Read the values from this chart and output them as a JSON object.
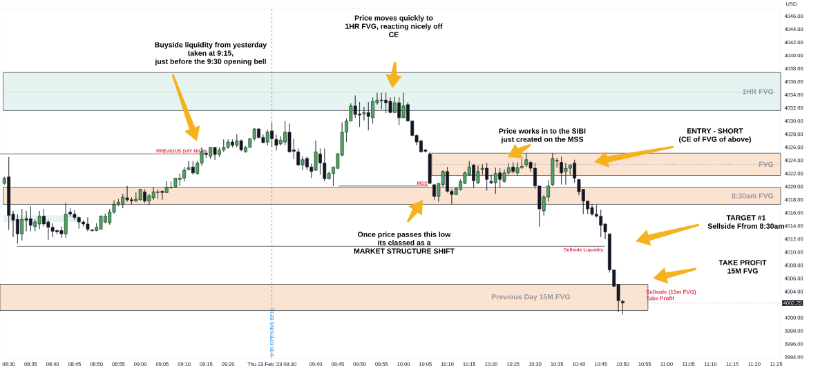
{
  "chart_data": {
    "type": "candlestick",
    "ylabel": "USD",
    "x": [
      "2023-02-23T08:29",
      "2023-02-23T08:30",
      "2023-02-23T08:31",
      "2023-02-23T08:32",
      "2023-02-23T08:33",
      "2023-02-23T08:34",
      "2023-02-23T08:35",
      "2023-02-23T08:36",
      "2023-02-23T08:37",
      "2023-02-23T08:38",
      "2023-02-23T08:39",
      "2023-02-23T08:40",
      "2023-02-23T08:41",
      "2023-02-23T08:42",
      "2023-02-23T08:43",
      "2023-02-23T08:44",
      "2023-02-23T08:45",
      "2023-02-23T08:46",
      "2023-02-23T08:47",
      "2023-02-23T08:48",
      "2023-02-23T08:49",
      "2023-02-23T08:50",
      "2023-02-23T08:51",
      "2023-02-23T08:52",
      "2023-02-23T08:53",
      "2023-02-23T08:54",
      "2023-02-23T08:55",
      "2023-02-23T08:56",
      "2023-02-23T08:57",
      "2023-02-23T08:58",
      "2023-02-23T08:59",
      "2023-02-23T09:00",
      "2023-02-23T09:01",
      "2023-02-23T09:02",
      "2023-02-23T09:03",
      "2023-02-23T09:04",
      "2023-02-23T09:05",
      "2023-02-23T09:06",
      "2023-02-23T09:07",
      "2023-02-23T09:08",
      "2023-02-23T09:09",
      "2023-02-23T09:10",
      "2023-02-23T09:11",
      "2023-02-23T09:12",
      "2023-02-23T09:13",
      "2023-02-23T09:14",
      "2023-02-23T09:15",
      "2023-02-23T09:16",
      "2023-02-23T09:17",
      "2023-02-23T09:18",
      "2023-02-23T09:19",
      "2023-02-23T09:20",
      "2023-02-23T09:21",
      "2023-02-23T09:22",
      "2023-02-23T09:23",
      "2023-02-23T09:24",
      "2023-02-23T09:25",
      "2023-02-23T09:26",
      "2023-02-23T09:27",
      "2023-02-23T09:28",
      "2023-02-23T09:29",
      "2023-02-23T09:30",
      "2023-02-23T09:31",
      "2023-02-23T09:32",
      "2023-02-23T09:33",
      "2023-02-23T09:34",
      "2023-02-23T09:35",
      "2023-02-23T09:36",
      "2023-02-23T09:37",
      "2023-02-23T09:38",
      "2023-02-23T09:39",
      "2023-02-23T09:40",
      "2023-02-23T09:41",
      "2023-02-23T09:42",
      "2023-02-23T09:43",
      "2023-02-23T09:44",
      "2023-02-23T09:45",
      "2023-02-23T09:46",
      "2023-02-23T09:47",
      "2023-02-23T09:48",
      "2023-02-23T09:49",
      "2023-02-23T09:50",
      "2023-02-23T09:51",
      "2023-02-23T09:52",
      "2023-02-23T09:53",
      "2023-02-23T09:54",
      "2023-02-23T09:55",
      "2023-02-23T09:56",
      "2023-02-23T09:57",
      "2023-02-23T09:58",
      "2023-02-23T09:59",
      "2023-02-23T10:00",
      "2023-02-23T10:01",
      "2023-02-23T10:02",
      "2023-02-23T10:03",
      "2023-02-23T10:04",
      "2023-02-23T10:05",
      "2023-02-23T10:06",
      "2023-02-23T10:07",
      "2023-02-23T10:08",
      "2023-02-23T10:09",
      "2023-02-23T10:10",
      "2023-02-23T10:11",
      "2023-02-23T10:12",
      "2023-02-23T10:13",
      "2023-02-23T10:14",
      "2023-02-23T10:15",
      "2023-02-23T10:16",
      "2023-02-23T10:17",
      "2023-02-23T10:18",
      "2023-02-23T10:19",
      "2023-02-23T10:20",
      "2023-02-23T10:21",
      "2023-02-23T10:22",
      "2023-02-23T10:23",
      "2023-02-23T10:24",
      "2023-02-23T10:25",
      "2023-02-23T10:26",
      "2023-02-23T10:27",
      "2023-02-23T10:28",
      "2023-02-23T10:29",
      "2023-02-23T10:30",
      "2023-02-23T10:31",
      "2023-02-23T10:32",
      "2023-02-23T10:33",
      "2023-02-23T10:34",
      "2023-02-23T10:35",
      "2023-02-23T10:36",
      "2023-02-23T10:37",
      "2023-02-23T10:38",
      "2023-02-23T10:39",
      "2023-02-23T10:40",
      "2023-02-23T10:41",
      "2023-02-23T10:42",
      "2023-02-23T10:43",
      "2023-02-23T10:44",
      "2023-02-23T10:45",
      "2023-02-23T10:46",
      "2023-02-23T10:47",
      "2023-02-23T10:48",
      "2023-02-23T10:49",
      "2023-02-23T10:50"
    ],
    "ohlc": [
      [
        4020.5,
        4021.5,
        4020.3,
        4021.3
      ],
      [
        4021.5,
        4024.5,
        4013.4,
        4015.6
      ],
      [
        4015.8,
        4016.3,
        4012.3,
        4014.9
      ],
      [
        4015.0,
        4015.8,
        4011.3,
        4012.8
      ],
      [
        4012.8,
        4016.6,
        4011.8,
        4015.0
      ],
      [
        4015.1,
        4016.3,
        4013.2,
        4014.9
      ],
      [
        4015.1,
        4017.0,
        4013.2,
        4014.1
      ],
      [
        4013.9,
        4015.0,
        4013.2,
        4014.6
      ],
      [
        4014.3,
        4016.3,
        4013.5,
        4015.5
      ],
      [
        4015.5,
        4016.6,
        4013.9,
        4014.3
      ],
      [
        4014.6,
        4014.9,
        4011.9,
        4013.8
      ],
      [
        4013.8,
        4014.4,
        4012.3,
        4013.2
      ],
      [
        4013.3,
        4013.5,
        4012.7,
        4013.1
      ],
      [
        4013.3,
        4013.9,
        4012.2,
        4012.8
      ],
      [
        4012.8,
        4017.5,
        4012.2,
        4015.8
      ],
      [
        4016.1,
        4016.7,
        4015.4,
        4015.8
      ],
      [
        4015.8,
        4016.4,
        4014.9,
        4015.3
      ],
      [
        4015.3,
        4015.4,
        4013.6,
        4014.6
      ],
      [
        4014.6,
        4014.9,
        4013.9,
        4014.3
      ],
      [
        4014.3,
        4015.3,
        4013.2,
        4013.5
      ],
      [
        4013.4,
        4013.5,
        4013.1,
        4013.3
      ],
      [
        4013.3,
        4014.4,
        4013.2,
        4013.8
      ],
      [
        4013.5,
        4015.6,
        4013.5,
        4015.5
      ],
      [
        4014.6,
        4015.9,
        4014.4,
        4015.5
      ],
      [
        4014.5,
        4016.6,
        4014.2,
        4016.1
      ],
      [
        4016.1,
        4017.9,
        4015.9,
        4017.3
      ],
      [
        4017.3,
        4018.1,
        4017.0,
        4017.6
      ],
      [
        4017.3,
        4018.9,
        4016.7,
        4018.4
      ],
      [
        4018.3,
        4020.1,
        4017.7,
        4018.0
      ],
      [
        4018.0,
        4018.4,
        4017.3,
        4017.8
      ],
      [
        4017.8,
        4019.1,
        4017.7,
        4018.1
      ],
      [
        4018.0,
        4019.6,
        4017.9,
        4019.6
      ],
      [
        4019.2,
        4019.6,
        4017.5,
        4017.8
      ],
      [
        4017.8,
        4018.9,
        4017.2,
        4018.6
      ],
      [
        4018.3,
        4019.9,
        4018.0,
        4019.2
      ],
      [
        4019.1,
        4019.6,
        4018.1,
        4019.2
      ],
      [
        4019.3,
        4019.4,
        4018.0,
        4019.1
      ],
      [
        4019.1,
        4020.8,
        4019.0,
        4019.9
      ],
      [
        4019.8,
        4020.8,
        4019.8,
        4019.9
      ],
      [
        4019.9,
        4021.3,
        4019.8,
        4021.3
      ],
      [
        4021.1,
        4022.0,
        4020.1,
        4021.3
      ],
      [
        4021.3,
        4023.0,
        4020.8,
        4022.5
      ],
      [
        4022.6,
        4023.9,
        4022.5,
        4022.9
      ],
      [
        4023.0,
        4023.9,
        4021.8,
        4022.1
      ],
      [
        4022.0,
        4023.9,
        4021.8,
        4023.6
      ],
      [
        4023.6,
        4026.0,
        4023.2,
        4025.3
      ],
      [
        4025.1,
        4025.5,
        4024.4,
        4024.9
      ],
      [
        4024.6,
        4026.0,
        4024.2,
        4026.0
      ],
      [
        4026.0,
        4026.0,
        4024.1,
        4024.9
      ],
      [
        4024.9,
        4026.0,
        4024.5,
        4025.6
      ],
      [
        4025.6,
        4027.2,
        4025.3,
        4026.0
      ],
      [
        4026.0,
        4027.2,
        4025.8,
        4026.8
      ],
      [
        4026.8,
        4027.2,
        4026.0,
        4026.3
      ],
      [
        4026.3,
        4028.0,
        4026.0,
        4027.0
      ],
      [
        4027.0,
        4027.2,
        4025.4,
        4025.6
      ],
      [
        4025.3,
        4026.2,
        4025.2,
        4026.0
      ],
      [
        4026.0,
        4027.4,
        4025.9,
        4027.3
      ],
      [
        4027.3,
        4028.9,
        4027.0,
        4028.8
      ],
      [
        4028.8,
        4028.9,
        4027.4,
        4027.5
      ],
      [
        4027.5,
        4027.9,
        4026.7,
        4026.7
      ],
      [
        4026.8,
        4028.7,
        4026.3,
        4028.3
      ],
      [
        4028.5,
        4029.8,
        4026.0,
        4027.3
      ],
      [
        4027.2,
        4027.9,
        4025.5,
        4026.3
      ],
      [
        4026.5,
        4027.7,
        4026.3,
        4027.1
      ],
      [
        4026.8,
        4030.0,
        4026.3,
        4028.3
      ],
      [
        4028.3,
        4029.6,
        4025.2,
        4025.3
      ],
      [
        4025.6,
        4027.3,
        4024.2,
        4025.4
      ],
      [
        4025.3,
        4025.8,
        4023.2,
        4023.3
      ],
      [
        4023.3,
        4024.6,
        4022.5,
        4024.1
      ],
      [
        4024.3,
        4024.6,
        4022.5,
        4023.0
      ],
      [
        4023.0,
        4023.5,
        4021.3,
        4022.3
      ],
      [
        4022.5,
        4027.0,
        4022.4,
        4025.3
      ],
      [
        4025.0,
        4025.8,
        4021.8,
        4023.6
      ],
      [
        4023.6,
        4025.8,
        4020.8,
        4021.2
      ],
      [
        4021.2,
        4022.3,
        4021.1,
        4022.0
      ],
      [
        4022.0,
        4023.0,
        4020.1,
        4023.0
      ],
      [
        4022.8,
        4025.1,
        4022.7,
        4025.0
      ],
      [
        4024.8,
        4029.8,
        4024.6,
        4028.3
      ],
      [
        4028.3,
        4030.4,
        4026.8,
        4030.0
      ],
      [
        4030.0,
        4032.7,
        4030.0,
        4032.3
      ],
      [
        4032.3,
        4033.9,
        4030.5,
        4031.0
      ],
      [
        4031.1,
        4032.9,
        4029.1,
        4030.9
      ],
      [
        4031.1,
        4032.2,
        4030.1,
        4031.3
      ],
      [
        4031.3,
        4032.9,
        4028.6,
        4030.7
      ],
      [
        4030.5,
        4033.6,
        4029.6,
        4033.0
      ],
      [
        4032.8,
        4034.3,
        4032.5,
        4033.2
      ],
      [
        4033.2,
        4034.3,
        4031.8,
        4033.1
      ],
      [
        4033.2,
        4034.3,
        4031.2,
        4032.8
      ],
      [
        4033.0,
        4033.6,
        4031.2,
        4031.3
      ],
      [
        4031.3,
        4033.7,
        4031.2,
        4032.8
      ],
      [
        4032.8,
        4033.6,
        4029.4,
        4030.5
      ],
      [
        4030.5,
        4034.3,
        4030.5,
        4032.3
      ],
      [
        4032.5,
        4032.9,
        4029.9,
        4030.0
      ],
      [
        4030.0,
        4030.1,
        4027.7,
        4027.8
      ],
      [
        4027.8,
        4028.0,
        4026.3,
        4026.8
      ],
      [
        4027.0,
        4027.1,
        4025.2,
        4025.3
      ],
      [
        4025.6,
        4025.7,
        4025.2,
        4025.4
      ],
      [
        4025.0,
        4025.3,
        4020.4,
        4020.5
      ],
      [
        4020.3,
        4020.4,
        4018.0,
        4018.5
      ],
      [
        4018.5,
        4020.5,
        4017.7,
        4020.5
      ],
      [
        4020.3,
        4022.5,
        4019.9,
        4022.3
      ],
      [
        4022.3,
        4023.0,
        4019.1,
        4019.3
      ],
      [
        4019.3,
        4019.6,
        4017.3,
        4018.8
      ],
      [
        4018.8,
        4019.9,
        4018.7,
        4019.7
      ],
      [
        4019.6,
        4021.1,
        4019.4,
        4020.8
      ],
      [
        4020.5,
        4022.3,
        4020.4,
        4022.1
      ],
      [
        4021.8,
        4023.9,
        4021.7,
        4023.0
      ],
      [
        4023.3,
        4023.4,
        4019.8,
        4020.9
      ],
      [
        4020.6,
        4023.2,
        4020.4,
        4022.3
      ],
      [
        4022.6,
        4023.4,
        4021.8,
        4022.8
      ],
      [
        4022.8,
        4023.6,
        4019.4,
        4021.1
      ],
      [
        4020.8,
        4021.8,
        4020.4,
        4020.6
      ],
      [
        4020.6,
        4022.9,
        4018.9,
        4022.0
      ],
      [
        4022.1,
        4022.8,
        4019.9,
        4021.1
      ],
      [
        4020.8,
        4022.6,
        4020.6,
        4022.1
      ],
      [
        4022.1,
        4023.6,
        4021.8,
        4022.9
      ],
      [
        4023.0,
        4023.7,
        4022.0,
        4022.3
      ],
      [
        4022.1,
        4023.7,
        4021.7,
        4022.9
      ],
      [
        4022.9,
        4024.2,
        4022.7,
        4023.1
      ],
      [
        4023.3,
        4025.1,
        4023.0,
        4024.1
      ],
      [
        4023.7,
        4023.9,
        4022.2,
        4022.8
      ],
      [
        4022.8,
        4023.6,
        4019.7,
        4020.1
      ],
      [
        4020.1,
        4020.1,
        4013.9,
        4016.6
      ],
      [
        4016.3,
        4018.7,
        4015.6,
        4018.4
      ],
      [
        4018.4,
        4021.0,
        4017.7,
        4020.1
      ],
      [
        4020.3,
        4025.1,
        4020.1,
        4024.3
      ],
      [
        4024.0,
        4024.4,
        4022.9,
        4023.9
      ],
      [
        4023.7,
        4024.6,
        4020.3,
        4022.1
      ],
      [
        4022.3,
        4023.6,
        4020.3,
        4022.8
      ],
      [
        4022.8,
        4023.4,
        4021.8,
        4023.3
      ],
      [
        4023.6,
        4024.1,
        4020.6,
        4021.3
      ],
      [
        4021.1,
        4021.1,
        4018.7,
        4019.2
      ],
      [
        4019.6,
        4019.6,
        4015.8,
        4017.8
      ],
      [
        4017.8,
        4017.8,
        4015.8,
        4016.6
      ],
      [
        4016.8,
        4017.3,
        4015.6,
        4015.8
      ],
      [
        4015.8,
        4017.2,
        4015.3,
        4015.5
      ],
      [
        4015.5,
        4016.5,
        4012.3,
        4014.1
      ],
      [
        4014.3,
        4014.4,
        4012.0,
        4013.1
      ],
      [
        4012.8,
        4012.8,
        4006.9,
        4007.3
      ],
      [
        4007.3,
        4007.3,
        4004.7,
        4004.8
      ],
      [
        4005.1,
        4005.1,
        4000.9,
        4002.6
      ],
      [
        4002.5,
        4002.75,
        4000.5,
        4002.25
      ]
    ],
    "xlim": [
      "2023-02-23T08:28",
      "2023-02-23T11:26"
    ],
    "xticks": [
      {
        "value": "2023-02-23T08:30",
        "label": "08:30"
      },
      {
        "value": "2023-02-23T08:35",
        "label": "08:35"
      },
      {
        "value": "2023-02-23T08:40",
        "label": "08:40"
      },
      {
        "value": "2023-02-23T08:45",
        "label": "08:45"
      },
      {
        "value": "2023-02-23T08:50",
        "label": "08:50"
      },
      {
        "value": "2023-02-23T08:55",
        "label": "08:55"
      },
      {
        "value": "2023-02-23T09:00",
        "label": "09:00"
      },
      {
        "value": "2023-02-23T09:05",
        "label": "09:05"
      },
      {
        "value": "2023-02-23T09:10",
        "label": "09:10"
      },
      {
        "value": "2023-02-23T09:15",
        "label": "09:15"
      },
      {
        "value": "2023-02-23T09:20",
        "label": "09:20"
      },
      {
        "value": "2023-02-23T09:30",
        "label": "Thu 23 Feb '23  09:30"
      },
      {
        "value": "2023-02-23T09:40",
        "label": "09:40"
      },
      {
        "value": "2023-02-23T09:45",
        "label": "09:45"
      },
      {
        "value": "2023-02-23T09:50",
        "label": "09:50"
      },
      {
        "value": "2023-02-23T09:55",
        "label": "09:55"
      },
      {
        "value": "2023-02-23T10:00",
        "label": "10:00"
      },
      {
        "value": "2023-02-23T10:05",
        "label": "10:05"
      },
      {
        "value": "2023-02-23T10:10",
        "label": "10:10"
      },
      {
        "value": "2023-02-23T10:15",
        "label": "10:15"
      },
      {
        "value": "2023-02-23T10:20",
        "label": "10:20"
      },
      {
        "value": "2023-02-23T10:25",
        "label": "10:25"
      },
      {
        "value": "2023-02-23T10:30",
        "label": "10:30"
      },
      {
        "value": "2023-02-23T10:35",
        "label": "10:35"
      },
      {
        "value": "2023-02-23T10:40",
        "label": "10:40"
      },
      {
        "value": "2023-02-23T10:45",
        "label": "10:45"
      },
      {
        "value": "2023-02-23T10:50",
        "label": "10:50"
      },
      {
        "value": "2023-02-23T10:55",
        "label": "10:55"
      },
      {
        "value": "2023-02-23T11:00",
        "label": "11:00"
      },
      {
        "value": "2023-02-23T11:05",
        "label": "11:05"
      },
      {
        "value": "2023-02-23T11:10",
        "label": "11:10"
      },
      {
        "value": "2023-02-23T11:15",
        "label": "11:15"
      },
      {
        "value": "2023-02-23T11:20",
        "label": "11:20"
      },
      {
        "value": "2023-02-23T11:25",
        "label": "11:25"
      }
    ],
    "ylim": [
      3993.8,
      4047.2
    ],
    "yticks": [
      {
        "value": 3994,
        "label": "3994.00"
      },
      {
        "value": 3996,
        "label": "3996.00"
      },
      {
        "value": 3998,
        "label": "3998.00"
      },
      {
        "value": 4000,
        "label": "4000.00"
      },
      {
        "value": 4004,
        "label": "4004.00"
      },
      {
        "value": 4006,
        "label": "4006.00"
      },
      {
        "value": 4008,
        "label": "4008.00"
      },
      {
        "value": 4010,
        "label": "4010.00"
      },
      {
        "value": 4012,
        "label": "4012.00"
      },
      {
        "value": 4014,
        "label": "4014.00"
      },
      {
        "value": 4016,
        "label": "4016.00"
      },
      {
        "value": 4018,
        "label": "4018.00"
      },
      {
        "value": 4020,
        "label": "4020.00"
      },
      {
        "value": 4022,
        "label": "4022.00"
      },
      {
        "value": 4024,
        "label": "4024.00"
      },
      {
        "value": 4026,
        "label": "4026.00"
      },
      {
        "value": 4028,
        "label": "4028.00"
      },
      {
        "value": 4030,
        "label": "4030.00"
      },
      {
        "value": 4032,
        "label": "4032.00"
      },
      {
        "value": 4034,
        "label": "4034.00"
      },
      {
        "value": 4036,
        "label": "4036.00"
      },
      {
        "value": 4038,
        "label": "4038.00"
      },
      {
        "value": 4040,
        "label": "4040.00"
      },
      {
        "value": 4042,
        "label": "4042.00"
      },
      {
        "value": 4044,
        "label": "4044.00"
      },
      {
        "value": 4046,
        "label": "4046.00"
      }
    ],
    "bands": [
      {
        "axis": "y",
        "from": 4031.6,
        "to": 4037.4,
        "label": "1HR FVG",
        "color": "#e6f4f1"
      },
      {
        "axis": "y",
        "from": 4021.7,
        "to": 4025.1,
        "label": "FVG",
        "color": "#fbe3d1"
      },
      {
        "axis": "y",
        "from": 4017.3,
        "to": 4019.9,
        "label": "8:30am FVG",
        "color": "#fbe3d1"
      },
      {
        "axis": "y",
        "from": 4001.1,
        "to": 4005.1,
        "label": "Previous Day 15M FVG",
        "color": "#fbe3d1"
      },
      {
        "axis": "y",
        "from": 4014.6,
        "to": 4015.6,
        "color": "#e6f4f1"
      }
    ],
    "ref_lines": [
      {
        "axis": "y",
        "value": 4025.0,
        "label": "PREVIOUS DAY HIGH",
        "color": "#434651"
      },
      {
        "axis": "y",
        "value": 4020.1,
        "label": "MSS",
        "color": "#434651"
      },
      {
        "axis": "y",
        "value": 4010.9,
        "label": "Sellside Liquidity",
        "color": "#434651"
      },
      {
        "axis": "x",
        "value": "2023-02-23T09:30",
        "label": "9:30 OPENING BELL",
        "color": "#787b86",
        "line_style": "dashed"
      },
      {
        "axis": "y",
        "value": 4034.4,
        "color": "#9598a1",
        "line_style": "dotted"
      },
      {
        "axis": "y",
        "value": 4023.4,
        "color": "#9598a1",
        "line_style": "dotted"
      },
      {
        "axis": "y",
        "value": 4002.25,
        "label": "4002.25",
        "color": "#9598a1",
        "line_style": "dotted"
      }
    ],
    "annotations": [
      "Buyside liquidity from yesterday\ntaken at 9:15,\njust before the 9:30 opening bell",
      "Price moves quickly to\n1HR FVG, reacting nicely off\nCE",
      "Price works in to the SIBI\njust created on the MSS",
      "ENTRY - SHORT\n(CE of FVG of above)",
      "Once price passes this low\nits classed as a\nMARKET STRUCTURE SHIFT",
      "TARGET #1\nSellside Ffrom 8:30am",
      "TAKE PROFIT\n15M FVG",
      "Sellside (15m FVG)\nTake Profit"
    ]
  }
}
